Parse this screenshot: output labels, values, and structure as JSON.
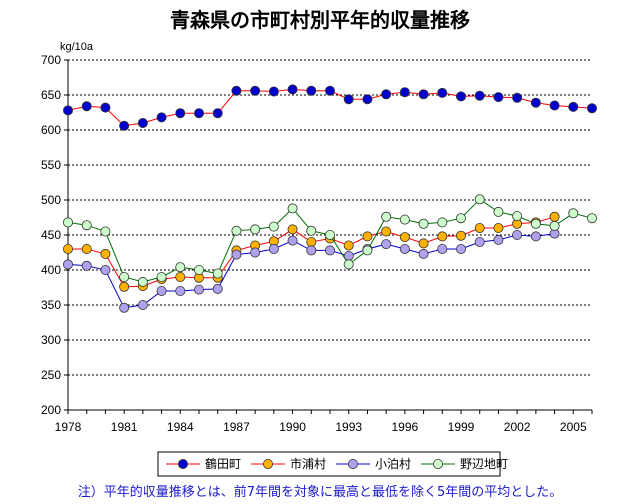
{
  "chart_data": {
    "type": "line",
    "title": "青森県の市町村別平年的収量推移",
    "ylabel": "kg/10a",
    "xlabel": "",
    "ylim": [
      200,
      700
    ],
    "yticks": [
      200,
      250,
      300,
      350,
      400,
      450,
      500,
      550,
      600,
      650,
      700
    ],
    "xlim": [
      1978,
      2006
    ],
    "xticks": [
      1978,
      1981,
      1984,
      1987,
      1990,
      1993,
      1996,
      1999,
      2002,
      2005
    ],
    "grid": true,
    "legend_position": "bottom",
    "note": "注）平年的収量推移とは、前7年間を対象に最高と最低を除く5年間の平均とした。",
    "series": [
      {
        "name": "鶴田町",
        "color": "#0000cc",
        "line_color": "#ff0000",
        "x": [
          1978,
          1979,
          1980,
          1981,
          1982,
          1983,
          1984,
          1985,
          1986,
          1987,
          1988,
          1989,
          1990,
          1991,
          1992,
          1993,
          1994,
          1995,
          1996,
          1997,
          1998,
          1999,
          2000,
          2001,
          2002,
          2003,
          2004,
          2005,
          2006
        ],
        "values": [
          628,
          634,
          632,
          606,
          610,
          618,
          624,
          624,
          624,
          656,
          656,
          655,
          658,
          656,
          656,
          644,
          644,
          651,
          654,
          651,
          653,
          648,
          649,
          647,
          646,
          639,
          635,
          633,
          631
        ]
      },
      {
        "name": "市浦村",
        "color": "#ffb000",
        "line_color": "#ff0000",
        "x": [
          1978,
          1979,
          1980,
          1981,
          1982,
          1983,
          1984,
          1985,
          1986,
          1987,
          1988,
          1989,
          1990,
          1991,
          1992,
          1993,
          1994,
          1995,
          1996,
          1997,
          1998,
          1999,
          2000,
          2001,
          2002,
          2003,
          2004
        ],
        "values": [
          430,
          430,
          423,
          376,
          377,
          387,
          390,
          389,
          389,
          428,
          435,
          441,
          458,
          440,
          445,
          435,
          448,
          455,
          447,
          438,
          448,
          449,
          460,
          460,
          466,
          468,
          476
        ]
      },
      {
        "name": "小泊村",
        "color": "#b0a0f0",
        "line_color": "#0000cc",
        "x": [
          1978,
          1979,
          1980,
          1981,
          1982,
          1983,
          1984,
          1985,
          1986,
          1987,
          1988,
          1989,
          1990,
          1991,
          1992,
          1993,
          1994,
          1995,
          1996,
          1997,
          1998,
          1999,
          2000,
          2001,
          2002,
          2003,
          2004
        ],
        "values": [
          408,
          406,
          400,
          346,
          350,
          370,
          370,
          372,
          373,
          422,
          425,
          430,
          442,
          428,
          428,
          420,
          430,
          437,
          430,
          423,
          430,
          430,
          440,
          443,
          450,
          448,
          452
        ]
      },
      {
        "name": "野辺地町",
        "color": "#ccffcc",
        "line_color": "#007000",
        "x": [
          1978,
          1979,
          1980,
          1981,
          1982,
          1983,
          1984,
          1985,
          1986,
          1987,
          1988,
          1989,
          1990,
          1991,
          1992,
          1993,
          1994,
          1995,
          1996,
          1997,
          1998,
          1999,
          2000,
          2001,
          2002,
          2003,
          2004,
          2005,
          2006
        ],
        "values": [
          468,
          464,
          455,
          390,
          383,
          390,
          404,
          400,
          395,
          456,
          458,
          462,
          488,
          456,
          450,
          408,
          428,
          476,
          472,
          466,
          468,
          474,
          501,
          483,
          477,
          466,
          463,
          481,
          474
        ]
      }
    ]
  }
}
